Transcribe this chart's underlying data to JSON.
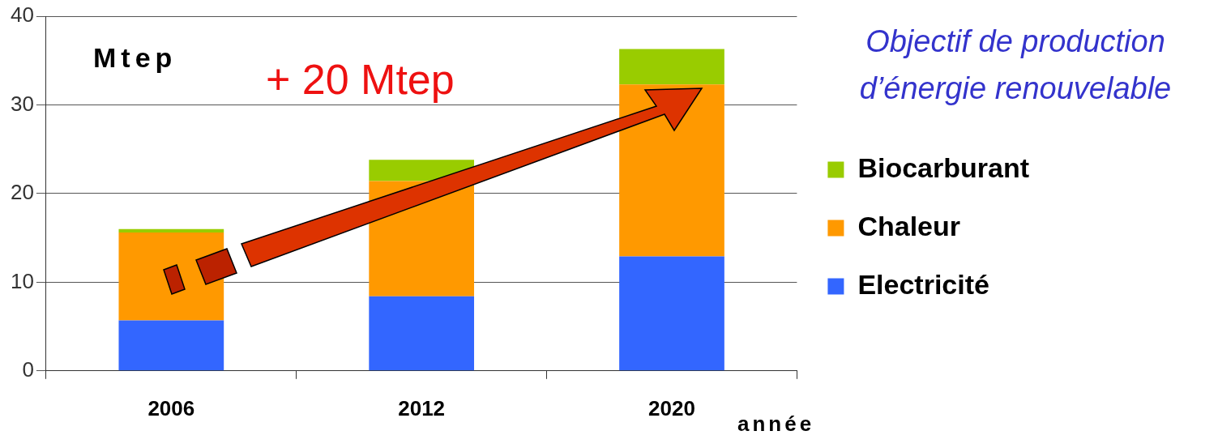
{
  "chart_data": {
    "type": "bar",
    "title": "Objectif de production d’énergie renouvelable",
    "xlabel": "année",
    "ylabel": "Mtep",
    "annotations": [
      "+ 20 Mtep"
    ],
    "categories": [
      "2006",
      "2012",
      "2020"
    ],
    "series": [
      {
        "name": "Electricité",
        "color": "#3366ff",
        "values": [
          5.7,
          8.4,
          12.9
        ]
      },
      {
        "name": "Chaleur",
        "color": "#ff9900",
        "values": [
          9.9,
          13.0,
          19.4
        ]
      },
      {
        "name": "Biocarburant",
        "color": "#99cc00",
        "values": [
          0.4,
          2.4,
          4.0
        ]
      }
    ],
    "stacked": true,
    "ylim": [
      0,
      40
    ],
    "yticks": [
      0,
      10,
      20,
      30,
      40
    ],
    "grid": "y",
    "legend": "right"
  }
}
